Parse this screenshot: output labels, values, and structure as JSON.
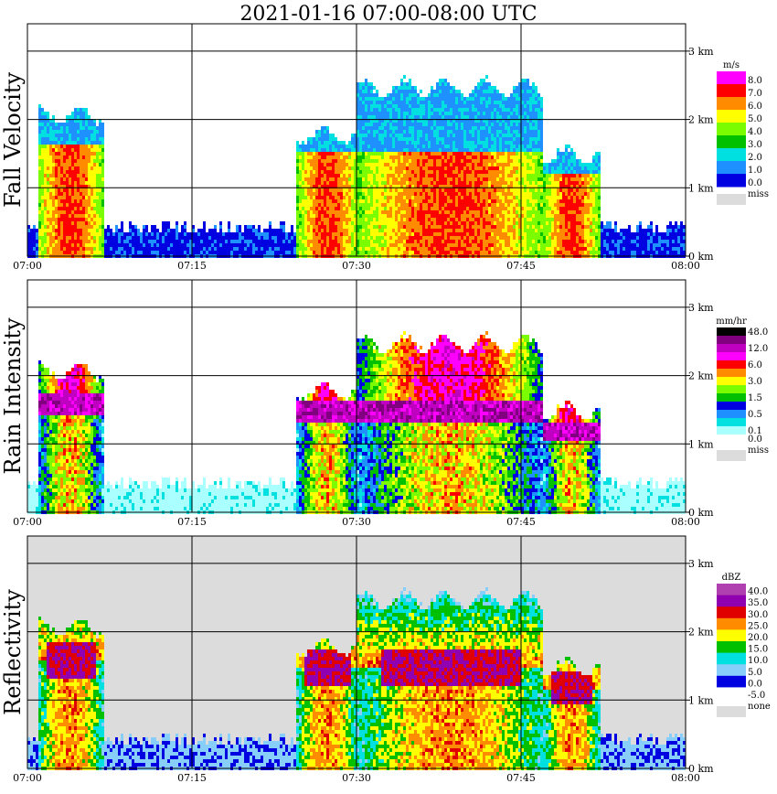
{
  "chart_data": {
    "type": "heatmap",
    "title": "2021-01-16   07:00-08:00 UTC",
    "x_ticks": [
      "07:00",
      "07:15",
      "07:30",
      "07:45",
      "08:00"
    ],
    "x_range_minutes": [
      0,
      60
    ],
    "height_ticks": [
      "0 km",
      "1 km",
      "2 km",
      "3 km"
    ],
    "height_range_km": [
      0,
      3.4
    ],
    "grid": true,
    "legend_placement": "right",
    "panels": [
      {
        "id": "fall-velocity",
        "ylabel": "Fall Velocity",
        "unit": "m/s",
        "background": "#ffffff",
        "legend": [
          {
            "label": "8.0",
            "color": "#ff00ff"
          },
          {
            "label": "7.0",
            "color": "#ff0000"
          },
          {
            "label": "6.0",
            "color": "#ff8c00"
          },
          {
            "label": "5.0",
            "color": "#ffff00"
          },
          {
            "label": "4.0",
            "color": "#7cfc00"
          },
          {
            "label": "3.0",
            "color": "#00c000"
          },
          {
            "label": "2.0",
            "color": "#00e0e0"
          },
          {
            "label": "1.0",
            "color": "#1e90ff"
          },
          {
            "label": "0.0",
            "color": "#0000e0"
          }
        ],
        "missing": {
          "label": "miss",
          "color": "#dcdcdc"
        }
      },
      {
        "id": "rain-intensity",
        "ylabel": "Rain Intensity",
        "unit": "mm/hr",
        "background": "#ffffff",
        "legend": [
          {
            "label": "48.0",
            "color": "#000000"
          },
          {
            "label": "",
            "color": "#800080"
          },
          {
            "label": "12.0",
            "color": "#c000c0"
          },
          {
            "label": "",
            "color": "#ff00ff"
          },
          {
            "label": "6.0",
            "color": "#ff0000"
          },
          {
            "label": "",
            "color": "#ff8c00"
          },
          {
            "label": "3.0",
            "color": "#ffff00"
          },
          {
            "label": "",
            "color": "#7cfc00"
          },
          {
            "label": "1.5",
            "color": "#00c000"
          },
          {
            "label": "",
            "color": "#0000e0"
          },
          {
            "label": "0.5",
            "color": "#1e90ff"
          },
          {
            "label": "",
            "color": "#00e0e0"
          },
          {
            "label": "0.1",
            "color": "#aaffff"
          },
          {
            "label": "0.0",
            "color": "#ffffff"
          }
        ],
        "missing": {
          "label": "miss",
          "color": "#dcdcdc"
        }
      },
      {
        "id": "reflectivity",
        "ylabel": "Reflectivity",
        "unit": "dBZ",
        "background": "#dcdcdc",
        "legend": [
          {
            "label": "40.0",
            "color": "#b040b0"
          },
          {
            "label": "35.0",
            "color": "#9000b0"
          },
          {
            "label": "30.0",
            "color": "#e00000"
          },
          {
            "label": "25.0",
            "color": "#ff8c00"
          },
          {
            "label": "20.0",
            "color": "#ffff00"
          },
          {
            "label": "15.0",
            "color": "#00c000"
          },
          {
            "label": "10.0",
            "color": "#00e0e0"
          },
          {
            "label": "5.0",
            "color": "#87cefa"
          },
          {
            "label": "0.0",
            "color": "#0000e0"
          },
          {
            "label": "-5.0",
            "color": "#ffffff"
          }
        ],
        "missing": {
          "label": "none",
          "color": "#dcdcdc"
        }
      }
    ],
    "events": [
      {
        "start_min": 0.8,
        "end_min": 6.8,
        "top_km": 2.2,
        "core_km": 1.6
      },
      {
        "start_min": 24.5,
        "end_min": 30.0,
        "top_km": 1.9,
        "core_km": 1.5
      },
      {
        "start_min": 30.0,
        "end_min": 47.0,
        "top_km": 2.6,
        "core_km": 1.5
      },
      {
        "start_min": 47.0,
        "end_min": 52.0,
        "top_km": 1.6,
        "core_km": 1.2
      }
    ]
  }
}
